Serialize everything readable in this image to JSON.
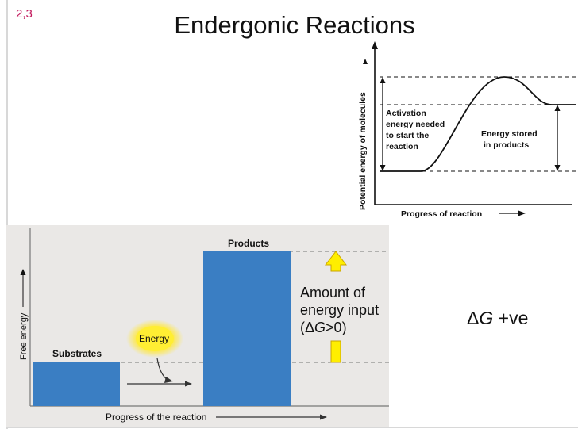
{
  "slide": {
    "number": "2,3",
    "title": "Endergonic Reactions"
  },
  "top_diagram": {
    "y_axis_label": "Potential energy of molecules",
    "x_axis_label": "Progress of reaction",
    "activation_label": [
      "Activation",
      "energy needed",
      "to start the",
      "reaction"
    ],
    "stored_label": [
      "Energy stored",
      "in products"
    ]
  },
  "bottom_diagram": {
    "y_axis_label": "Free energy",
    "x_axis_label": "Progress of the reaction",
    "substrates_label": "Substrates",
    "products_label": "Products",
    "energy_label": "Energy",
    "amount_line1": "Amount of",
    "amount_line2": "energy input",
    "amount_line3_pre": "(Δ",
    "amount_line3_g": "G",
    "amount_line3_post": ">0)"
  },
  "delta_g": {
    "symbol": "Δ",
    "g": "G",
    "suffix": " +ve"
  },
  "colors": {
    "bar": "#3a7ec3",
    "panel": "#eae8e6",
    "arrow_yellow": "#ffee00",
    "slide_number": "#c2185b"
  }
}
